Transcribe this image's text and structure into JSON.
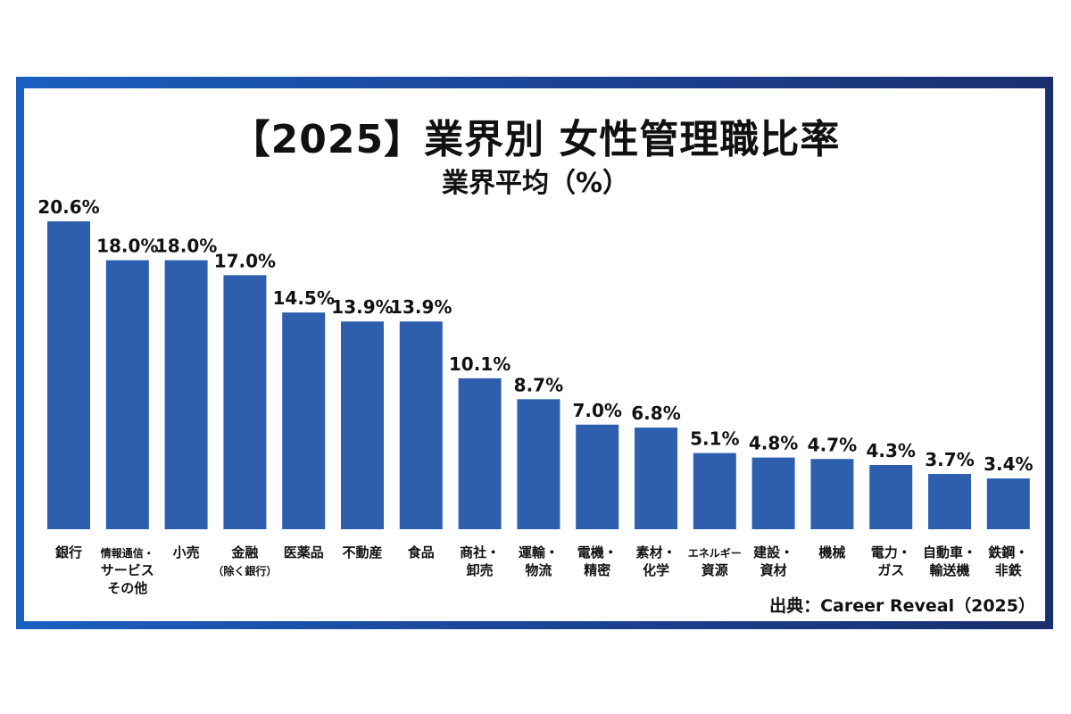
{
  "chart_data": {
    "type": "bar",
    "title": "【2025】業界別 女性管理職比率",
    "subtitle": "業界平均（%）",
    "source": "出典：Career Reveal（2025）",
    "unit": "%",
    "categories": [
      [
        "銀行"
      ],
      [
        "情報通信・",
        "サービス",
        "その他"
      ],
      [
        "小売"
      ],
      [
        "金融",
        "（除く銀行）"
      ],
      [
        "医薬品"
      ],
      [
        "不動産"
      ],
      [
        "食品"
      ],
      [
        "商社・",
        "卸売"
      ],
      [
        "運輸・",
        "物流"
      ],
      [
        "電機・",
        "精密"
      ],
      [
        "素材・",
        "化学"
      ],
      [
        "エネルギー",
        "資源"
      ],
      [
        "建設・",
        "資材"
      ],
      [
        "機械"
      ],
      [
        "電力・",
        "ガス"
      ],
      [
        "自動車・",
        "輸送機"
      ],
      [
        "鉄鋼・",
        "非鉄"
      ]
    ],
    "values": [
      20.6,
      18.0,
      18.0,
      17.0,
      14.5,
      13.9,
      13.9,
      10.1,
      8.7,
      7.0,
      6.8,
      5.1,
      4.8,
      4.7,
      4.3,
      3.7,
      3.4
    ],
    "ylim": [
      0,
      20.6
    ],
    "grid": false,
    "bar_color": "#2d5fae",
    "frame_color": "#1b4fa8"
  }
}
